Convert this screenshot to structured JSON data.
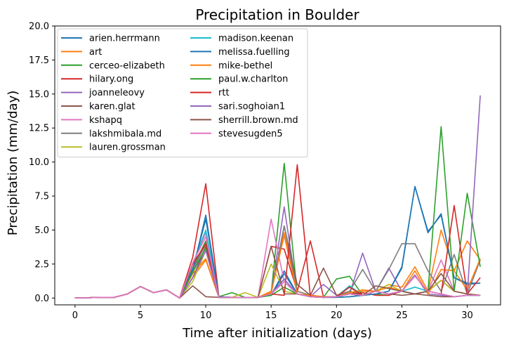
{
  "chart_data": {
    "type": "line",
    "title": "Precipitation in Boulder",
    "xlabel": "Time after initialization (days)",
    "ylabel": "Precipitation (mm/day)",
    "xlim": [
      -1.55,
      32.55
    ],
    "ylim": [
      -0.5,
      20
    ],
    "xticks": [
      0,
      5,
      10,
      15,
      20,
      25,
      30
    ],
    "yticks": [
      0.0,
      2.5,
      5.0,
      7.5,
      10.0,
      12.5,
      15.0,
      17.5,
      20.0
    ],
    "ytick_labels": [
      "0.0",
      "2.5",
      "5.0",
      "7.5",
      "10.0",
      "12.5",
      "15.0",
      "17.5",
      "20.0"
    ],
    "grid": false,
    "legend": {
      "placement": "upper-left",
      "columns": 2
    },
    "x": [
      0,
      1,
      2,
      3,
      4,
      5,
      6,
      7,
      8,
      9,
      10,
      11,
      12,
      13,
      14,
      15,
      16,
      17,
      18,
      19,
      20,
      21,
      22,
      23,
      24,
      25,
      26,
      27,
      28,
      29,
      30,
      31
    ],
    "series": [
      {
        "name": "arien.herrmann",
        "color": "#1f77b4",
        "values": [
          0.02,
          0.02,
          0.05,
          0.05,
          0.3,
          0.85,
          0.4,
          0.6,
          0,
          2.0,
          6.1,
          0.1,
          0.05,
          0.05,
          0.05,
          0.2,
          2.0,
          0.3,
          0.1,
          0.05,
          0.05,
          0.1,
          0.2,
          0.3,
          0.5,
          2.3,
          8.2,
          4.8,
          6.2,
          1.5,
          1.0,
          1.1
        ]
      },
      {
        "name": "art",
        "color": "#ff7f0e",
        "values": [
          0.02,
          0.02,
          0.05,
          0.05,
          0.3,
          0.85,
          0.4,
          0.6,
          0,
          1.5,
          2.8,
          0.05,
          0.05,
          0.05,
          0.05,
          0.5,
          4.8,
          0.5,
          0.2,
          0.1,
          0.1,
          0.3,
          0.5,
          0.5,
          1.0,
          0.8,
          2.3,
          0.5,
          5.0,
          2.0,
          4.2,
          2.8
        ]
      },
      {
        "name": "cerceo-elizabeth",
        "color": "#2ca02c",
        "values": [
          0.02,
          0.02,
          0.05,
          0.05,
          0.3,
          0.85,
          0.4,
          0.6,
          0,
          2.2,
          4.2,
          0.1,
          0.4,
          0.05,
          0.05,
          0.3,
          9.9,
          0.3,
          0.1,
          0.05,
          1.4,
          1.6,
          0.2,
          0.3,
          0.2,
          0.5,
          0.3,
          0.5,
          1.3,
          0.5,
          0.3,
          0.2
        ]
      },
      {
        "name": "hilary.ong",
        "color": "#d62728",
        "values": [
          0.02,
          0.02,
          0.05,
          0.05,
          0.3,
          0.85,
          0.4,
          0.6,
          0,
          3.0,
          8.4,
          0.1,
          0.05,
          0.05,
          0.05,
          3.8,
          3.6,
          0.5,
          4.2,
          0.1,
          0.1,
          0.3,
          0.4,
          0.2,
          0.2,
          0.5,
          0.3,
          0.5,
          1.3,
          0.5,
          0.3,
          0.2
        ]
      },
      {
        "name": "joanneleovy",
        "color": "#9467bd",
        "values": [
          0.02,
          0.02,
          0.05,
          0.05,
          0.3,
          0.85,
          0.4,
          0.6,
          0,
          2.1,
          4.0,
          0.05,
          0.05,
          0.05,
          0.05,
          0.3,
          6.7,
          0.3,
          0.1,
          1.0,
          0.2,
          0.3,
          3.3,
          0.5,
          2.2,
          0.5,
          1.7,
          0.3,
          0.2,
          0.1,
          0.2,
          0.2
        ]
      },
      {
        "name": "karen.glat",
        "color": "#8c564b",
        "values": [
          0.02,
          0.02,
          0.05,
          0.05,
          0.3,
          0.85,
          0.4,
          0.6,
          0,
          1.5,
          3.8,
          0.05,
          0.05,
          0.05,
          0.05,
          0.3,
          5.3,
          1.0,
          0.2,
          2.2,
          0.2,
          0.5,
          0.2,
          0.5,
          0.3,
          0.2,
          0.3,
          0.2,
          0.1,
          0.1,
          0.2,
          0.2
        ]
      },
      {
        "name": "kshapq",
        "color": "#e377c2",
        "values": [
          0.02,
          0.02,
          0.05,
          0.05,
          0.3,
          0.85,
          0.4,
          0.6,
          0,
          2.5,
          4.8,
          0.05,
          0.05,
          0.05,
          0.05,
          5.8,
          1.2,
          0.3,
          0.1,
          0.05,
          0.1,
          0.3,
          0.2,
          0.5,
          0.3,
          0.5,
          0.3,
          0.5,
          2.8,
          0.5,
          0.3,
          0.2
        ]
      },
      {
        "name": "lakshmibala.md",
        "color": "#7f7f7f",
        "values": [
          0.02,
          0.02,
          0.05,
          0.05,
          0.3,
          0.85,
          0.4,
          0.6,
          0,
          2.0,
          4.0,
          0.05,
          0.05,
          0.05,
          0.05,
          0.3,
          5.3,
          0.5,
          0.2,
          0.1,
          0.1,
          0.5,
          2.1,
          0.5,
          2.1,
          4.0,
          4.0,
          2.0,
          0.5,
          3.2,
          0.3,
          2.8
        ]
      },
      {
        "name": "lauren.grossman",
        "color": "#bcbd22",
        "values": [
          0.02,
          0.02,
          0.05,
          0.05,
          0.3,
          0.85,
          0.4,
          0.6,
          0,
          1.2,
          3.5,
          0.1,
          0.05,
          0.4,
          0.05,
          2.5,
          0.5,
          0.3,
          0.1,
          0.05,
          0.1,
          0.3,
          0.2,
          0.5,
          1.0,
          0.5,
          0.3,
          0.5,
          1.3,
          0.5,
          0.3,
          0.2
        ]
      },
      {
        "name": "madison.keenan",
        "color": "#17becf",
        "values": [
          0.02,
          0.02,
          0.05,
          0.05,
          0.3,
          0.85,
          0.4,
          0.6,
          0,
          2.5,
          5.0,
          0.05,
          0.05,
          0.05,
          0.05,
          0.3,
          1.2,
          0.3,
          0.1,
          0.05,
          0.1,
          0.9,
          0.2,
          0.5,
          0.3,
          0.5,
          0.8,
          0.5,
          0.3,
          0.1,
          0.2,
          0.2
        ]
      },
      {
        "name": "melissa.fuelling",
        "color": "#1f77b4",
        "values": [
          0.02,
          0.02,
          0.05,
          0.05,
          0.3,
          0.85,
          0.4,
          0.6,
          0,
          2.1,
          5.8,
          0.1,
          0.05,
          0.05,
          0.05,
          0.2,
          1.8,
          0.3,
          0.1,
          0.05,
          0.05,
          0.1,
          0.2,
          0.3,
          0.5,
          2.2,
          8.2,
          4.9,
          6.1,
          1.5,
          1.1,
          1.1
        ]
      },
      {
        "name": "mike-bethel",
        "color": "#ff7f0e",
        "values": [
          0.02,
          0.02,
          0.05,
          0.05,
          0.3,
          0.85,
          0.4,
          0.6,
          0,
          1.8,
          2.9,
          0.05,
          0.05,
          0.05,
          0.05,
          0.4,
          4.6,
          0.3,
          0.2,
          0.1,
          0.1,
          0.4,
          0.6,
          0.5,
          0.8,
          0.5,
          2.0,
          0.3,
          2.1,
          2.0,
          0.6,
          2.9
        ]
      },
      {
        "name": "paul.w.charlton",
        "color": "#2ca02c",
        "values": [
          0.02,
          0.02,
          0.05,
          0.05,
          0.3,
          0.85,
          0.4,
          0.6,
          0,
          1.9,
          3.7,
          0.05,
          0.05,
          0.05,
          0.05,
          0.2,
          0.8,
          0.3,
          0.1,
          0.05,
          0.1,
          0.3,
          0.2,
          0.5,
          0.3,
          0.5,
          0.3,
          0.5,
          12.6,
          0.5,
          7.7,
          2.3
        ]
      },
      {
        "name": "rtt",
        "color": "#d62728",
        "values": [
          0.02,
          0.02,
          0.05,
          0.05,
          0.3,
          0.85,
          0.4,
          0.6,
          0,
          2.5,
          4.0,
          0.05,
          0.05,
          0.05,
          0.05,
          0.3,
          0.2,
          9.8,
          0.1,
          0.05,
          0.1,
          0.8,
          0.2,
          0.5,
          0.3,
          0.5,
          0.3,
          0.5,
          0.3,
          6.8,
          0.3,
          1.5
        ]
      },
      {
        "name": "sari.soghoian1",
        "color": "#9467bd",
        "values": [
          0.02,
          0.02,
          0.05,
          0.05,
          0.3,
          0.85,
          0.4,
          0.6,
          0,
          1.5,
          3.5,
          0.05,
          0.05,
          0.05,
          0.05,
          0.3,
          1.4,
          0.3,
          0.1,
          0.05,
          0.1,
          0.3,
          0.2,
          0.5,
          0.3,
          0.5,
          0.3,
          0.5,
          0.3,
          0.1,
          0.2,
          14.9
        ]
      },
      {
        "name": "sherrill.brown.md",
        "color": "#8c564b",
        "values": [
          0.02,
          0.02,
          0.05,
          0.05,
          0.3,
          0.85,
          0.4,
          0.6,
          0,
          0.9,
          0.1,
          0.05,
          0.05,
          0.05,
          0.05,
          3.8,
          0.3,
          0.3,
          0.1,
          0.05,
          0.1,
          0.3,
          0.2,
          0.9,
          0.7,
          0.5,
          0.3,
          0.5,
          1.8,
          0.5,
          0.3,
          0.2
        ]
      },
      {
        "name": "stevesugden5",
        "color": "#e377c2",
        "values": [
          0.02,
          0.02,
          0.05,
          0.05,
          0.3,
          0.85,
          0.4,
          0.6,
          0,
          2.6,
          4.5,
          0.05,
          0.05,
          0.05,
          0.05,
          0.3,
          1.2,
          0.3,
          0.1,
          0.05,
          0.1,
          0.3,
          0.2,
          0.5,
          0.3,
          0.5,
          1.6,
          0.5,
          0.3,
          0.1,
          0.2,
          0.2
        ]
      }
    ]
  }
}
